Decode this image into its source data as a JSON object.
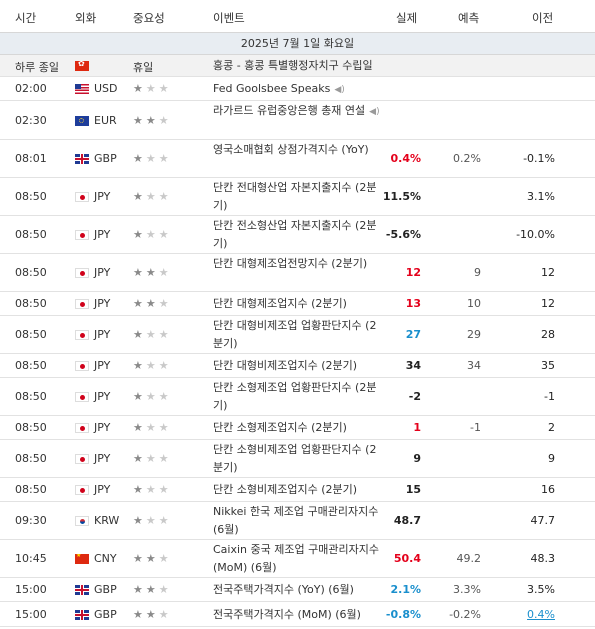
{
  "headers": {
    "time": "시간",
    "currency": "외화",
    "importance": "중요성",
    "event": "이벤트",
    "actual": "실제",
    "forecast": "예측",
    "previous": "이전"
  },
  "date": "2025년 7월 1일 화요일",
  "holiday": {
    "time": "하루 종일",
    "country": "hong-kong-flag",
    "label": "휴일",
    "event": "홍콩 - 홍콩 특별행정자치구 수립일"
  },
  "colors": {
    "actual_red": "#e4001b",
    "actual_blue": "#1a8fcd",
    "date_bar": "#e8edf2"
  },
  "events": [
    {
      "time": "02:00",
      "flag": "us-flag",
      "currency": "USD",
      "stars": 1,
      "event": "Fed Goolsbee Speaks",
      "speech": true,
      "actual": "",
      "actual_color": "",
      "forecast": "",
      "previous": "",
      "previous_style": ""
    },
    {
      "time": "02:30",
      "flag": "eu-flag",
      "currency": "EUR",
      "stars": 2,
      "event": "라가르드 유럽중앙은행 총재 연설",
      "speech": true,
      "actual": "",
      "actual_color": "",
      "forecast": "",
      "previous": "",
      "previous_style": ""
    },
    {
      "time": "08:01",
      "flag": "gb-flag",
      "currency": "GBP",
      "stars": 1,
      "event": "영국소매협회 상점가격지수 (YoY)",
      "speech": false,
      "actual": "0.4%",
      "actual_color": "red",
      "forecast": "0.2%",
      "previous": "-0.1%",
      "previous_style": ""
    },
    {
      "time": "08:50",
      "flag": "jp-flag",
      "currency": "JPY",
      "stars": 1,
      "event": "단칸 전대형산업 자본지출지수 (2분기)",
      "speech": false,
      "actual": "11.5%",
      "actual_color": "black",
      "forecast": "",
      "previous": "3.1%",
      "previous_style": ""
    },
    {
      "time": "08:50",
      "flag": "jp-flag",
      "currency": "JPY",
      "stars": 1,
      "event": "단칸 전소형산업 자본지출지수 (2분기)",
      "speech": false,
      "actual": "-5.6%",
      "actual_color": "black",
      "forecast": "",
      "previous": "-10.0%",
      "previous_style": ""
    },
    {
      "time": "08:50",
      "flag": "jp-flag",
      "currency": "JPY",
      "stars": 2,
      "event": "단칸 대형제조업전망지수 (2분기)",
      "speech": false,
      "actual": "12",
      "actual_color": "red",
      "forecast": "9",
      "previous": "12",
      "previous_style": ""
    },
    {
      "time": "08:50",
      "flag": "jp-flag",
      "currency": "JPY",
      "stars": 2,
      "event": "단칸 대형제조업지수 (2분기)",
      "speech": false,
      "actual": "13",
      "actual_color": "red",
      "forecast": "10",
      "previous": "12",
      "previous_style": ""
    },
    {
      "time": "08:50",
      "flag": "jp-flag",
      "currency": "JPY",
      "stars": 1,
      "event": "단칸 대형비제조업 업황판단지수 (2분기)",
      "speech": false,
      "actual": "27",
      "actual_color": "blue",
      "forecast": "29",
      "previous": "28",
      "previous_style": ""
    },
    {
      "time": "08:50",
      "flag": "jp-flag",
      "currency": "JPY",
      "stars": 1,
      "event": "단칸 대형비제조업지수 (2분기)",
      "speech": false,
      "actual": "34",
      "actual_color": "black",
      "forecast": "34",
      "previous": "35",
      "previous_style": ""
    },
    {
      "time": "08:50",
      "flag": "jp-flag",
      "currency": "JPY",
      "stars": 1,
      "event": "단칸 소형제조업 업황판단지수 (2분기)",
      "speech": false,
      "actual": "-2",
      "actual_color": "black",
      "forecast": "",
      "previous": "-1",
      "previous_style": ""
    },
    {
      "time": "08:50",
      "flag": "jp-flag",
      "currency": "JPY",
      "stars": 1,
      "event": "단칸 소형제조업지수 (2분기)",
      "speech": false,
      "actual": "1",
      "actual_color": "red",
      "forecast": "-1",
      "previous": "2",
      "previous_style": ""
    },
    {
      "time": "08:50",
      "flag": "jp-flag",
      "currency": "JPY",
      "stars": 1,
      "event": "단칸 소형비제조업 업황판단지수 (2분기)",
      "speech": false,
      "actual": "9",
      "actual_color": "black",
      "forecast": "",
      "previous": "9",
      "previous_style": ""
    },
    {
      "time": "08:50",
      "flag": "jp-flag",
      "currency": "JPY",
      "stars": 1,
      "event": "단칸 소형비제조업지수 (2분기)",
      "speech": false,
      "actual": "15",
      "actual_color": "black",
      "forecast": "",
      "previous": "16",
      "previous_style": ""
    },
    {
      "time": "09:30",
      "flag": "kr-flag",
      "currency": "KRW",
      "stars": 1,
      "event": "Nikkei 한국 제조업 구매관리자지수 (6월)",
      "speech": false,
      "actual": "48.7",
      "actual_color": "black",
      "forecast": "",
      "previous": "47.7",
      "previous_style": ""
    },
    {
      "time": "10:45",
      "flag": "cn-flag",
      "currency": "CNY",
      "stars": 2,
      "event": "Caixin 중국 제조업 구매관리자지수 (MoM) (6월)",
      "speech": false,
      "actual": "50.4",
      "actual_color": "red",
      "forecast": "49.2",
      "previous": "48.3",
      "previous_style": ""
    },
    {
      "time": "15:00",
      "flag": "gb-flag",
      "currency": "GBP",
      "stars": 2,
      "event": "전국주택가격지수 (YoY) (6월)",
      "speech": false,
      "actual": "2.1%",
      "actual_color": "blue",
      "forecast": "3.3%",
      "previous": "3.5%",
      "previous_style": ""
    },
    {
      "time": "15:00",
      "flag": "gb-flag",
      "currency": "GBP",
      "stars": 2,
      "event": "전국주택가격지수 (MoM) (6월)",
      "speech": false,
      "actual": "-0.8%",
      "actual_color": "blue",
      "forecast": "-0.2%",
      "previous": "0.4%",
      "previous_style": "blue-underline"
    }
  ]
}
